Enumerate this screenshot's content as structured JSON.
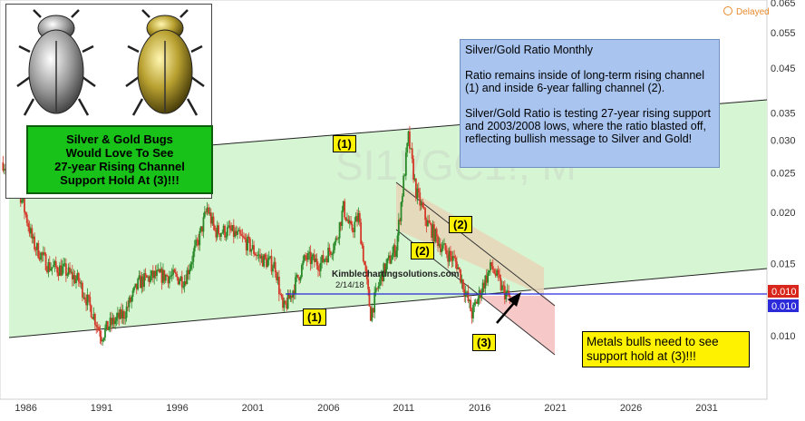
{
  "chart_data": {
    "type": "line",
    "title": "Silver/Gold Ratio Monthly",
    "watermark": "SI1!/GC1!, M",
    "xlabel": "",
    "ylabel": "",
    "x_ticks": [
      "1986",
      "1991",
      "1996",
      "2001",
      "2006",
      "2011",
      "2016",
      "2021",
      "2026",
      "2031"
    ],
    "y_ticks": [
      "0.065",
      "0.055",
      "0.045",
      "0.035",
      "0.030",
      "0.025",
      "0.020",
      "0.015",
      "0.010"
    ],
    "ylim": [
      0.007,
      0.066
    ],
    "xlim": [
      1984.3,
      2035.0
    ],
    "y_scale": "log",
    "grid": false,
    "last_value_tags": [
      "0.010",
      "0.010"
    ],
    "series": [
      {
        "values": [
          [
            1984.5,
            0.0265
          ],
          [
            1985.5,
            0.0232
          ],
          [
            1986.5,
            0.0168
          ],
          [
            1987.5,
            0.0148
          ],
          [
            1988.5,
            0.0145
          ],
          [
            1989.5,
            0.0136
          ],
          [
            1990.5,
            0.0112
          ],
          [
            1991.0,
            0.01
          ],
          [
            1991.5,
            0.0106
          ],
          [
            1992.5,
            0.0113
          ],
          [
            1993.5,
            0.0135
          ],
          [
            1994.5,
            0.014
          ],
          [
            1995.5,
            0.014
          ],
          [
            1996.5,
            0.0137
          ],
          [
            1997.5,
            0.0175
          ],
          [
            1998.0,
            0.0205
          ],
          [
            1998.5,
            0.018
          ],
          [
            1999.5,
            0.018
          ],
          [
            2000.5,
            0.017
          ],
          [
            2001.5,
            0.0155
          ],
          [
            2002.5,
            0.0148
          ],
          [
            2003.0,
            0.0115
          ],
          [
            2003.5,
            0.0125
          ],
          [
            2004.5,
            0.0155
          ],
          [
            2005.5,
            0.015
          ],
          [
            2006.5,
            0.017
          ],
          [
            2007.0,
            0.0205
          ],
          [
            2007.5,
            0.018
          ],
          [
            2008.0,
            0.0195
          ],
          [
            2008.8,
            0.0113
          ],
          [
            2009.5,
            0.014
          ],
          [
            2010.5,
            0.0165
          ],
          [
            2011.3,
            0.0305
          ],
          [
            2011.8,
            0.0225
          ],
          [
            2012.5,
            0.019
          ],
          [
            2013.5,
            0.0165
          ],
          [
            2014.5,
            0.015
          ],
          [
            2015.5,
            0.0113
          ],
          [
            2016.3,
            0.0135
          ],
          [
            2016.8,
            0.0148
          ],
          [
            2017.5,
            0.013
          ],
          [
            2018.1,
            0.0122
          ]
        ]
      }
    ],
    "annotations": {
      "channel_1_label": "(1)",
      "channel_2_label": "(2)",
      "support_label": "(3)"
    }
  },
  "info_box": {
    "title": "Silver/Gold Ratio Monthly",
    "para1": "Ratio remains inside of long-term rising channel (1) and inside 6-year falling channel (2).",
    "para2": "Silver/Gold Ratio is testing 27-year rising support and 2003/2008 lows, where the ratio blasted off, reflecting bullish message to Silver and Gold!"
  },
  "green_box": {
    "line1": "Silver & Gold Bugs",
    "line2": "Would Love To See",
    "line3": "27-year Rising Channel",
    "line4": "Support Hold At (3)!!!"
  },
  "bull_box": {
    "text": "Metals bulls need to see support hold at (3)!!!"
  },
  "labels": {
    "upper_channel_1": "(1)",
    "lower_channel_1": "(1)",
    "upper_channel_2": "(2)",
    "lower_channel_2": "(2)",
    "support_3": "(3)"
  },
  "source": {
    "site": "Kimblechartingsolutions.com",
    "date": "2/14/18"
  },
  "status": {
    "delayed": "Delayed"
  },
  "colors": {
    "channel_fill": "#d6f5d2",
    "falling_fill": "#e7d6b9",
    "projection_fill": "#f6c8c8",
    "support_line": "#2b2bd9",
    "tag_red": "#d9261c",
    "tag_blue": "#2b2bd9",
    "candle_up": "#2a8a2a",
    "candle_down": "#d43a2a"
  }
}
